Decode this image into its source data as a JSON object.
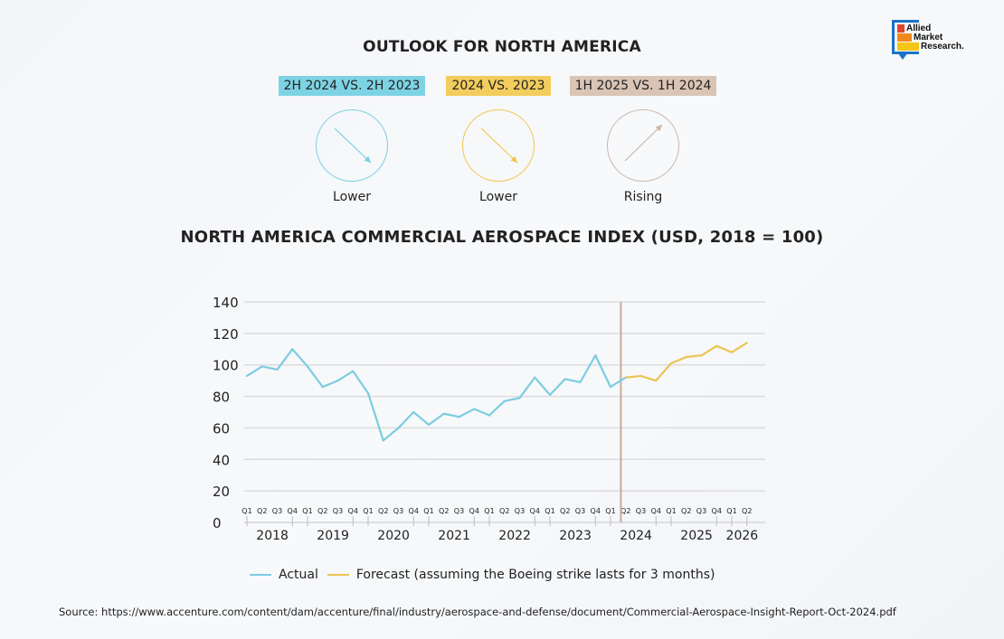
{
  "logo": {
    "lines": [
      "Allied",
      "Market",
      "Research."
    ]
  },
  "outlook": {
    "title": "OUTLOOK FOR NORTH AMERICA",
    "gauges": [
      {
        "badge": "2H 2024 VS. 2H 2023",
        "label": "Lower",
        "direction": "down",
        "color": "#7dcfe2",
        "badge_bg": "#7dd3e4"
      },
      {
        "badge": "2024 VS. 2023",
        "label": "Lower",
        "direction": "down",
        "color": "#f0c84e",
        "badge_bg": "#f2cc5c"
      },
      {
        "badge": "1H 2025 VS. 1H 2024",
        "label": "Rising",
        "direction": "up",
        "color": "#cdb7aa",
        "badge_bg": "#d9c4b6"
      }
    ]
  },
  "chart_data": {
    "type": "line",
    "title": "NORTH AMERICA COMMERCIAL AEROSPACE INDEX (USD, 2018 = 100)",
    "xlabel": "",
    "ylabel": "",
    "ylim": [
      0,
      140
    ],
    "yticks": [
      0,
      20,
      40,
      60,
      80,
      100,
      120,
      140
    ],
    "grid": true,
    "legend_position": "bottom",
    "quarter_labels": [
      "Q1",
      "Q2",
      "Q3",
      "Q4",
      "Q1",
      "Q2",
      "Q3",
      "Q4",
      "Q1",
      "Q2",
      "Q3",
      "Q4",
      "Q1",
      "Q2",
      "Q3",
      "Q4",
      "Q1",
      "Q2",
      "Q3",
      "Q4",
      "Q1",
      "Q2",
      "Q3",
      "Q4",
      "Q1",
      "Q2",
      "Q3",
      "Q4",
      "Q1",
      "Q2",
      "Q3",
      "Q4",
      "Q1",
      "Q2"
    ],
    "years": [
      "2018",
      "2019",
      "2020",
      "2021",
      "2022",
      "2023",
      "2024",
      "2025",
      "2026"
    ],
    "divider_after_index": 25,
    "series": [
      {
        "name": "Actual",
        "color": "#7ccde0",
        "start_index": 0,
        "values": [
          93,
          99,
          97,
          110,
          99,
          86,
          90,
          96,
          82,
          52,
          60,
          70,
          62,
          69,
          67,
          72,
          68,
          77,
          79,
          92,
          81,
          91,
          89,
          106,
          86,
          92
        ]
      },
      {
        "name": "Forecast (assuming the Boeing strike lasts for 3 months)",
        "color": "#ecc456",
        "start_index": 25,
        "values": [
          92,
          93,
          90,
          101,
          105,
          106,
          112,
          108,
          114
        ]
      }
    ],
    "divider_color": "#c9ab98"
  },
  "legend": {
    "actual": "Actual",
    "forecast": "Forecast (assuming the Boeing strike lasts for 3 months)"
  },
  "source": "Source: https://www.accenture.com/content/dam/accenture/final/industry/aerospace-and-defense/document/Commercial-Aerospace-Insight-Report-Oct-2024.pdf"
}
